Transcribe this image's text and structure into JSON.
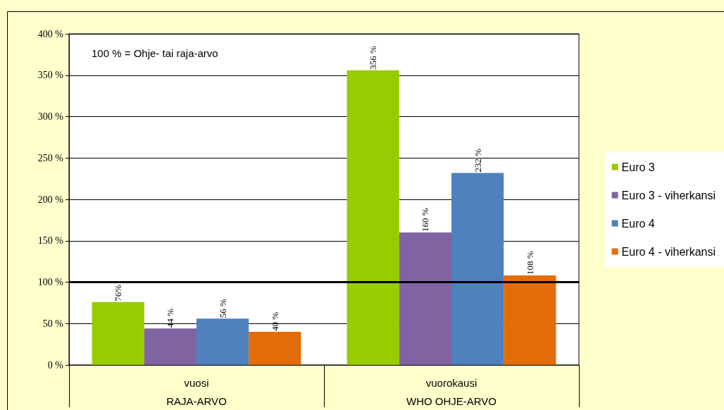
{
  "chart_data": {
    "type": "bar",
    "categories": [
      "vuosi\nRAJA-ARVO",
      "vuorokausi\nWHO OHJE-ARVO"
    ],
    "series": [
      {
        "name": "Euro 3",
        "color": "#99cc00",
        "values": [
          76,
          356
        ],
        "value_labels": [
          "76%",
          "356 %"
        ]
      },
      {
        "name": "Euro 3 - viherkansi",
        "color": "#8064a2",
        "values": [
          44,
          160
        ],
        "value_labels": [
          "44 %",
          "160 %"
        ]
      },
      {
        "name": "Euro 4",
        "color": "#4f81bd",
        "values": [
          56,
          232
        ],
        "value_labels": [
          "56 %",
          "232 %"
        ]
      },
      {
        "name": "Euro 4 - viherkansi",
        "color": "#e46c0a",
        "values": [
          40,
          108
        ],
        "value_labels": [
          "40 %",
          "108 %"
        ]
      }
    ],
    "ylim": [
      0,
      400
    ],
    "yticks": [
      {
        "value": 0,
        "label": "0 %"
      },
      {
        "value": 50,
        "label": "50 %"
      },
      {
        "value": 100,
        "label": "100 %"
      },
      {
        "value": 150,
        "label": "150 %"
      },
      {
        "value": 200,
        "label": "200 %"
      },
      {
        "value": 250,
        "label": "250 %"
      },
      {
        "value": 300,
        "label": "300 %"
      },
      {
        "value": 350,
        "label": "350 %"
      },
      {
        "value": 400,
        "label": "400 %"
      }
    ],
    "ref_lines": [
      {
        "axis": "y",
        "value": 100,
        "color": "#000000"
      }
    ],
    "annotations": [
      "100 % = Ohje- tai raja-arvo"
    ],
    "grid": "y",
    "legend": "right"
  }
}
